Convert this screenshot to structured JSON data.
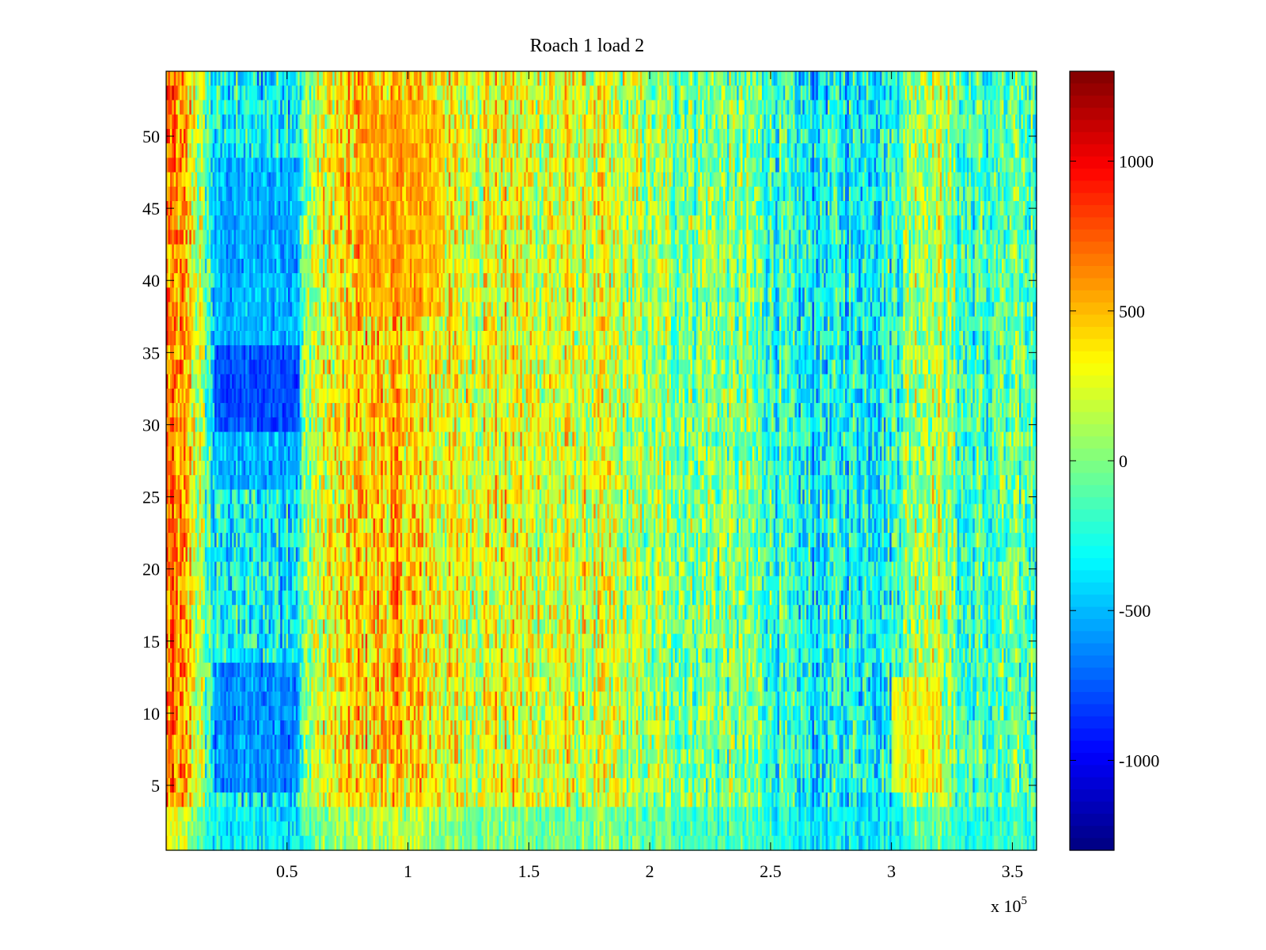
{
  "chart_data": {
    "type": "heatmap",
    "title": "Roach 1 load 2",
    "xlabel": "",
    "ylabel": "",
    "x_exponent_label": {
      "base": "x 10",
      "exp": "5"
    },
    "xlim": [
      0,
      360000
    ],
    "ylim": [
      0.5,
      54.5
    ],
    "rows": 54,
    "x_ticks": [
      {
        "value": 50000,
        "label": "0.5"
      },
      {
        "value": 100000,
        "label": "1"
      },
      {
        "value": 150000,
        "label": "1.5"
      },
      {
        "value": 200000,
        "label": "2"
      },
      {
        "value": 250000,
        "label": "2.5"
      },
      {
        "value": 300000,
        "label": "3"
      },
      {
        "value": 350000,
        "label": "3.5"
      }
    ],
    "y_ticks": [
      {
        "value": 5,
        "label": "5"
      },
      {
        "value": 10,
        "label": "10"
      },
      {
        "value": 15,
        "label": "15"
      },
      {
        "value": 20,
        "label": "20"
      },
      {
        "value": 25,
        "label": "25"
      },
      {
        "value": 30,
        "label": "30"
      },
      {
        "value": 35,
        "label": "35"
      },
      {
        "value": 40,
        "label": "40"
      },
      {
        "value": 45,
        "label": "45"
      },
      {
        "value": 50,
        "label": "50"
      }
    ],
    "colorbar": {
      "colormap": "jet",
      "clim": [
        -1300,
        1300
      ],
      "ticks": [
        {
          "value": 1000,
          "label": "1000"
        },
        {
          "value": 500,
          "label": "500"
        },
        {
          "value": 0,
          "label": "0"
        },
        {
          "value": -500,
          "label": "-500"
        },
        {
          "value": -1000,
          "label": "-1000"
        }
      ]
    },
    "column_profile": {
      "x_knots": [
        0,
        10000,
        20000,
        55000,
        60000,
        80000,
        100000,
        120000,
        140000,
        145000,
        180000,
        200000,
        230000,
        248000,
        260000,
        300000,
        310000,
        320000,
        330000,
        360000
      ],
      "base_values": [
        700,
        400,
        -350,
        -300,
        150,
        450,
        450,
        250,
        300,
        250,
        200,
        50,
        0,
        -100,
        -350,
        -250,
        150,
        150,
        -200,
        -100
      ]
    },
    "regions": [
      {
        "x_range": [
          20000,
          55000
        ],
        "y_range": [
          26,
          48
        ],
        "value": -650
      },
      {
        "x_range": [
          20000,
          55000
        ],
        "y_range": [
          30,
          35
        ],
        "value": -950
      },
      {
        "x_range": [
          20000,
          55000
        ],
        "y_range": [
          5,
          13
        ],
        "value": -800
      },
      {
        "x_range": [
          80000,
          115000
        ],
        "y_range": [
          38,
          52
        ],
        "value": 600
      },
      {
        "x_range": [
          300000,
          320000
        ],
        "y_range": [
          5,
          12
        ],
        "value": 500
      }
    ],
    "row_modifiers": {
      "y_range": [
        1,
        3
      ],
      "value": -150
    }
  }
}
